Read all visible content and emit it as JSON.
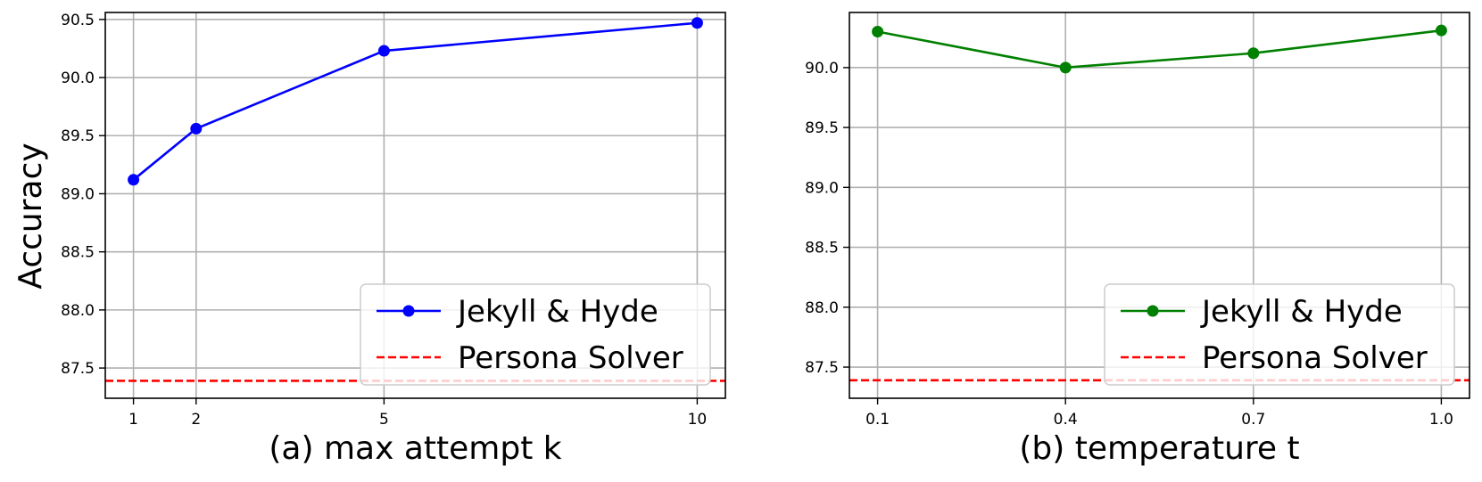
{
  "chart_data": [
    {
      "type": "line",
      "panel_id": "a",
      "xlabel": "(a) max attempt k",
      "ylabel": "Accuracy",
      "x": [
        1,
        2,
        5,
        10
      ],
      "x_ticks": [
        1,
        2,
        5,
        10
      ],
      "x_tick_labels": [
        "1",
        "2",
        "5",
        "10"
      ],
      "xlim": [
        0.55,
        10.45
      ],
      "ylim": [
        87.24,
        90.56
      ],
      "y_ticks": [
        87.5,
        88.0,
        88.5,
        89.0,
        89.5,
        90.0,
        90.5
      ],
      "y_tick_labels": [
        "87.5",
        "88.0",
        "88.5",
        "89.0",
        "89.5",
        "90.0",
        "90.5"
      ],
      "grid": true,
      "legend_position": "lower-right",
      "series": [
        {
          "name": "Jekyll & Hyde",
          "values": [
            89.12,
            89.56,
            90.23,
            90.47
          ],
          "color": "#0000ff",
          "style": "solid",
          "marker": "circle"
        }
      ],
      "reference_lines": [
        {
          "name": "Persona Solver",
          "y": 87.39,
          "color": "#ff0000",
          "style": "dashed"
        }
      ]
    },
    {
      "type": "line",
      "panel_id": "b",
      "xlabel": "(b) temperature t",
      "ylabel": "",
      "x": [
        0.1,
        0.4,
        0.7,
        1.0
      ],
      "x_ticks": [
        0.1,
        0.4,
        0.7,
        1.0
      ],
      "x_tick_labels": [
        "0.1",
        "0.4",
        "0.7",
        "1.0"
      ],
      "xlim": [
        0.055,
        1.045
      ],
      "ylim": [
        87.24,
        90.46
      ],
      "y_ticks": [
        87.5,
        88.0,
        88.5,
        89.0,
        89.5,
        90.0
      ],
      "y_tick_labels": [
        "87.5",
        "88.0",
        "88.5",
        "89.0",
        "89.5",
        "90.0"
      ],
      "grid": true,
      "legend_position": "lower-right",
      "series": [
        {
          "name": "Jekyll & Hyde",
          "values": [
            90.3,
            90.0,
            90.12,
            90.31
          ],
          "color": "#008000",
          "style": "solid",
          "marker": "circle"
        }
      ],
      "reference_lines": [
        {
          "name": "Persona Solver",
          "y": 87.39,
          "color": "#ff0000",
          "style": "dashed"
        }
      ]
    }
  ]
}
